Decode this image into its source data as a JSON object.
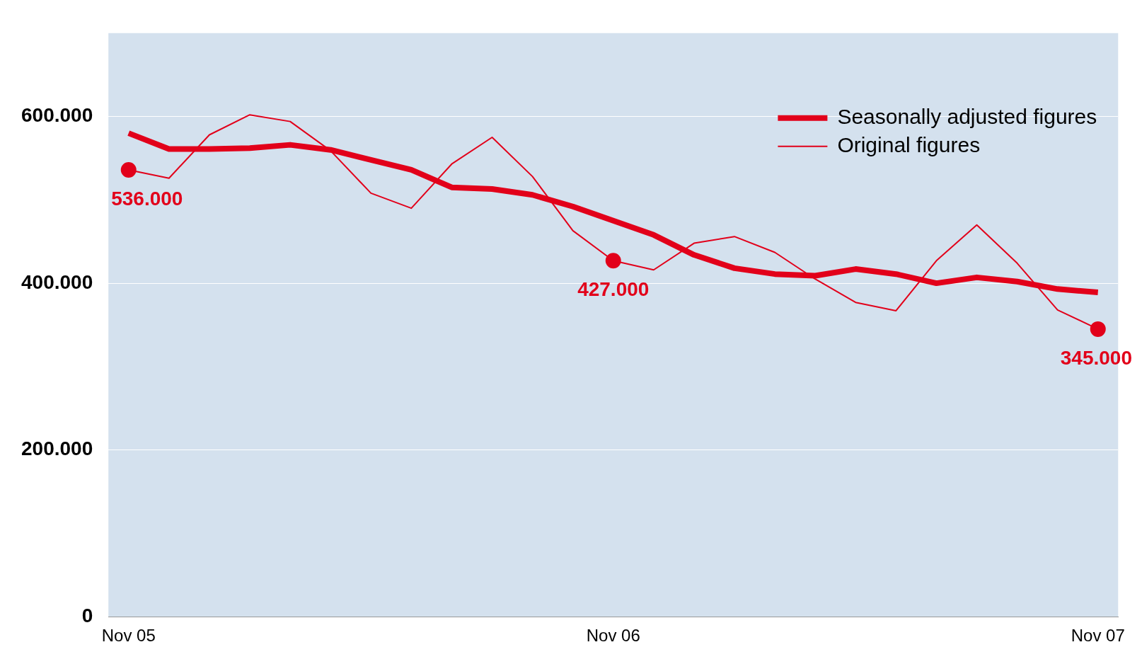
{
  "chart_data": {
    "type": "line",
    "categories": [
      "Nov 05",
      null,
      null,
      null,
      null,
      null,
      null,
      null,
      null,
      null,
      null,
      null,
      "Nov 06",
      null,
      null,
      null,
      null,
      null,
      null,
      null,
      null,
      null,
      null,
      null,
      "Nov 07"
    ],
    "series": [
      {
        "name": "Seasonally adjusted figures",
        "color": "#e2001a",
        "values": [
          580000,
          561000,
          561000,
          562000,
          566000,
          560000,
          548000,
          536000,
          515000,
          513000,
          506000,
          492000,
          475000,
          458000,
          434000,
          418000,
          411000,
          409000,
          417000,
          411000,
          400000,
          407000,
          402000,
          393000,
          389000
        ]
      },
      {
        "name": "Original figures",
        "color": "#e2001a",
        "values": [
          536000,
          526000,
          578000,
          602000,
          594000,
          559000,
          508000,
          490000,
          543000,
          575000,
          528000,
          463000,
          427000,
          416000,
          448000,
          456000,
          437000,
          405000,
          377000,
          367000,
          427000,
          470000,
          424000,
          368000,
          345000
        ],
        "value_labels": [
          "536.000",
          null,
          null,
          null,
          null,
          null,
          null,
          null,
          null,
          null,
          null,
          null,
          "427.000",
          null,
          null,
          null,
          null,
          null,
          null,
          null,
          null,
          null,
          null,
          null,
          "345.000"
        ]
      }
    ],
    "ylim": [
      0,
      700000
    ],
    "yticks": [
      {
        "value": 0,
        "label": "0"
      },
      {
        "value": 200000,
        "label": "200.000"
      },
      {
        "value": 400000,
        "label": "400.000"
      },
      {
        "value": 600000,
        "label": "600.000"
      }
    ],
    "grid": "y",
    "legend": "top right"
  }
}
